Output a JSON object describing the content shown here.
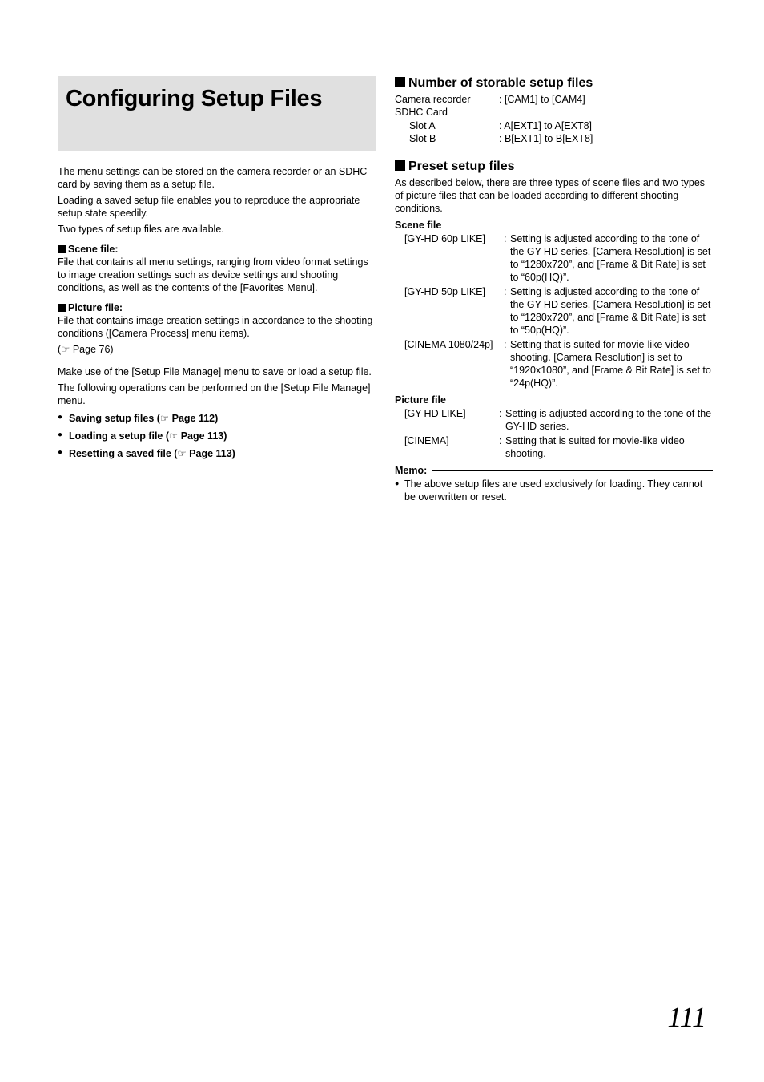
{
  "title": "Configuring Setup Files",
  "left": {
    "intro1": "The menu settings can be stored on the camera recorder or an SDHC card by saving them as a setup file.",
    "intro2": "Loading a saved setup file enables you to reproduce the appropriate setup state speedily.",
    "intro3": "Two types of setup files are available.",
    "scene_h": "Scene file:",
    "scene_body": "File that contains all menu settings, ranging from video format settings to image creation settings such as device settings and shooting conditions, as well as the contents of the [Favorites Menu].",
    "pic_h": "Picture file:",
    "pic_body1": "File that contains image creation settings in accordance to the shooting conditions ([Camera Process] menu items).",
    "pic_body2": "(☞ Page 76)",
    "use1": "Make use of the [Setup File Manage] menu to save or load a setup file.",
    "use2": "The following operations can be performed on the [Setup File Manage] menu.",
    "b1a": "Saving setup files (",
    "b1b": " Page 112)",
    "b2a": "Loading a setup file (",
    "b2b": " Page 113)",
    "b3a": "Resetting a saved file (",
    "b3b": " Page 113)",
    "ptr": "☞"
  },
  "right": {
    "num_h": "Number of storable setup files",
    "num_rows": [
      {
        "k": "Camera recorder",
        "v": ": [CAM1] to [CAM4]",
        "indent": false
      },
      {
        "k": "SDHC Card",
        "v": "",
        "indent": false
      },
      {
        "k": "Slot A",
        "v": ": A[EXT1] to A[EXT8]",
        "indent": true
      },
      {
        "k": "Slot B",
        "v": ": B[EXT1] to B[EXT8]",
        "indent": true
      }
    ],
    "preset_h": "Preset setup files",
    "preset_intro": "As described below, there are three types of scene files and two types of picture files that can be loaded according to different shooting conditions.",
    "scene_sub": "Scene file",
    "scene_rows": [
      {
        "k": "[GY-HD 60p LIKE]",
        "v": "Setting is adjusted according to the tone of the GY-HD series. [Camera Resolution] is set to “1280x720”, and [Frame & Bit Rate] is set to “60p(HQ)”."
      },
      {
        "k": "[GY-HD 50p LIKE]",
        "v": "Setting is adjusted according to the tone of the GY-HD series. [Camera Resolution] is set to “1280x720”, and [Frame & Bit Rate] is set to “50p(HQ)”."
      },
      {
        "k": "[CINEMA 1080/24p]",
        "v": "Setting that is suited for movie-like video shooting. [Camera Resolution] is set to “1920x1080”, and [Frame & Bit Rate] is set to “24p(HQ)”."
      }
    ],
    "pic_sub": "Picture file",
    "pic_rows": [
      {
        "k": "[GY-HD LIKE]",
        "v": "Setting is adjusted according to the tone of the GY-HD series."
      },
      {
        "k": "[CINEMA]",
        "v": "Setting that is suited for movie-like video shooting."
      }
    ],
    "memo_h": "Memo:",
    "memo_body": "The above setup files are used exclusively for loading. They cannot be overwritten or reset."
  },
  "page_number": "111"
}
